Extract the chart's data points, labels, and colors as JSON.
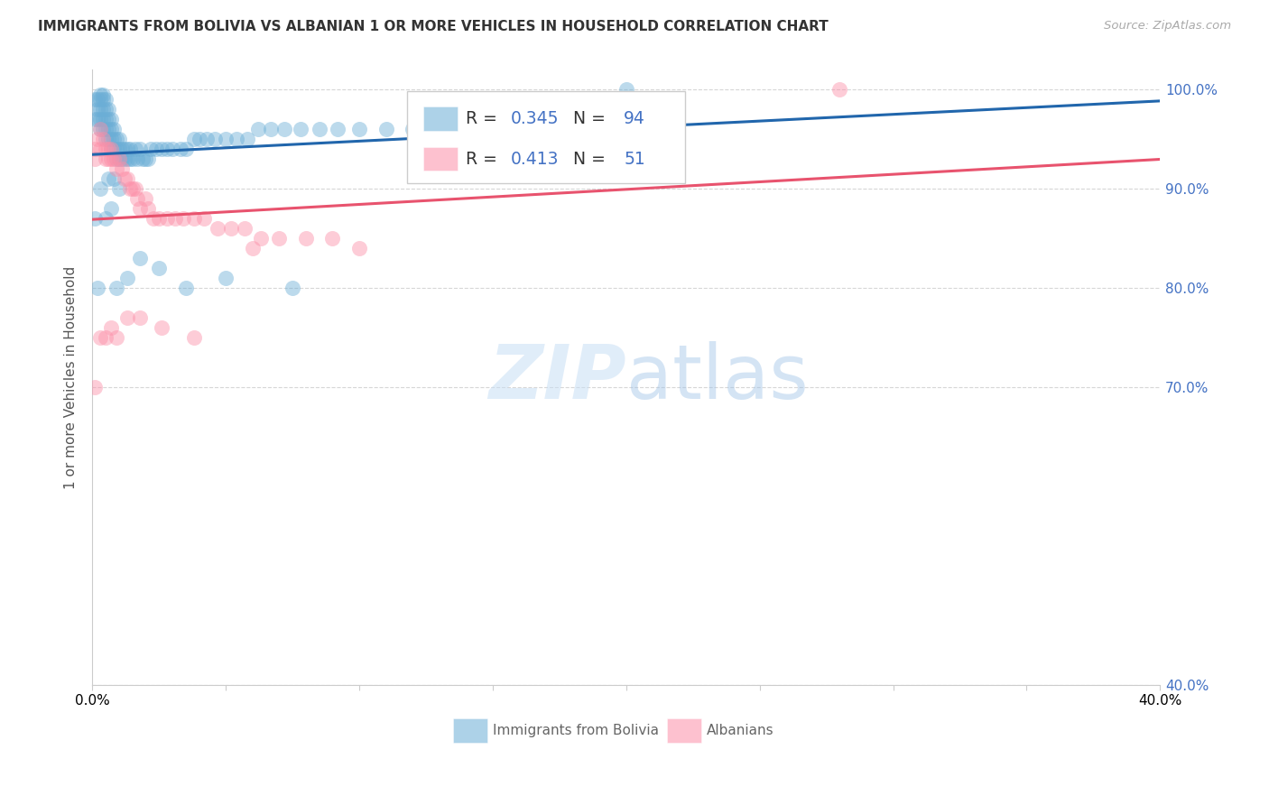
{
  "title": "IMMIGRANTS FROM BOLIVIA VS ALBANIAN 1 OR MORE VEHICLES IN HOUSEHOLD CORRELATION CHART",
  "source": "Source: ZipAtlas.com",
  "ylabel": "1 or more Vehicles in Household",
  "bolivia_color": "#6baed6",
  "albanian_color": "#fc8fa8",
  "bolivia_line_color": "#2166ac",
  "albanian_line_color": "#e8536e",
  "bolivia_R": 0.345,
  "bolivia_N": 94,
  "albanian_R": 0.413,
  "albanian_N": 51,
  "xmin": 0.0,
  "xmax": 0.4,
  "ymin": 0.4,
  "ymax": 1.02,
  "bolivia_x": [
    0.001,
    0.001,
    0.002,
    0.002,
    0.002,
    0.003,
    0.003,
    0.003,
    0.003,
    0.003,
    0.004,
    0.004,
    0.004,
    0.004,
    0.004,
    0.005,
    0.005,
    0.005,
    0.005,
    0.005,
    0.006,
    0.006,
    0.006,
    0.006,
    0.007,
    0.007,
    0.007,
    0.007,
    0.008,
    0.008,
    0.008,
    0.009,
    0.009,
    0.009,
    0.01,
    0.01,
    0.01,
    0.011,
    0.011,
    0.012,
    0.012,
    0.013,
    0.013,
    0.014,
    0.014,
    0.015,
    0.016,
    0.017,
    0.018,
    0.019,
    0.02,
    0.021,
    0.022,
    0.024,
    0.026,
    0.028,
    0.03,
    0.033,
    0.035,
    0.038,
    0.04,
    0.043,
    0.046,
    0.05,
    0.054,
    0.058,
    0.062,
    0.067,
    0.072,
    0.078,
    0.085,
    0.092,
    0.1,
    0.11,
    0.12,
    0.13,
    0.14,
    0.15,
    0.002,
    0.005,
    0.007,
    0.009,
    0.013,
    0.018,
    0.025,
    0.035,
    0.05,
    0.075,
    0.003,
    0.006,
    0.008,
    0.01,
    0.001,
    0.2
  ],
  "bolivia_y": [
    0.97,
    0.99,
    0.97,
    0.98,
    0.99,
    0.96,
    0.97,
    0.98,
    0.99,
    0.995,
    0.96,
    0.97,
    0.98,
    0.99,
    0.995,
    0.95,
    0.96,
    0.97,
    0.98,
    0.99,
    0.95,
    0.96,
    0.97,
    0.98,
    0.94,
    0.95,
    0.96,
    0.97,
    0.94,
    0.95,
    0.96,
    0.93,
    0.94,
    0.95,
    0.93,
    0.94,
    0.95,
    0.93,
    0.94,
    0.93,
    0.94,
    0.93,
    0.94,
    0.93,
    0.94,
    0.93,
    0.94,
    0.93,
    0.94,
    0.93,
    0.93,
    0.93,
    0.94,
    0.94,
    0.94,
    0.94,
    0.94,
    0.94,
    0.94,
    0.95,
    0.95,
    0.95,
    0.95,
    0.95,
    0.95,
    0.95,
    0.96,
    0.96,
    0.96,
    0.96,
    0.96,
    0.96,
    0.96,
    0.96,
    0.96,
    0.97,
    0.97,
    0.97,
    0.8,
    0.87,
    0.88,
    0.8,
    0.81,
    0.83,
    0.82,
    0.8,
    0.81,
    0.8,
    0.9,
    0.91,
    0.91,
    0.9,
    0.87,
    1.0
  ],
  "albanian_x": [
    0.001,
    0.001,
    0.002,
    0.003,
    0.003,
    0.004,
    0.005,
    0.005,
    0.006,
    0.006,
    0.007,
    0.007,
    0.008,
    0.009,
    0.01,
    0.011,
    0.012,
    0.013,
    0.014,
    0.015,
    0.016,
    0.017,
    0.018,
    0.02,
    0.021,
    0.023,
    0.025,
    0.028,
    0.031,
    0.034,
    0.038,
    0.042,
    0.047,
    0.052,
    0.057,
    0.063,
    0.07,
    0.08,
    0.09,
    0.1,
    0.001,
    0.003,
    0.005,
    0.007,
    0.009,
    0.013,
    0.018,
    0.026,
    0.038,
    0.06,
    0.28
  ],
  "albanian_y": [
    0.93,
    0.94,
    0.95,
    0.94,
    0.96,
    0.95,
    0.93,
    0.94,
    0.93,
    0.94,
    0.93,
    0.94,
    0.93,
    0.92,
    0.93,
    0.92,
    0.91,
    0.91,
    0.9,
    0.9,
    0.9,
    0.89,
    0.88,
    0.89,
    0.88,
    0.87,
    0.87,
    0.87,
    0.87,
    0.87,
    0.87,
    0.87,
    0.86,
    0.86,
    0.86,
    0.85,
    0.85,
    0.85,
    0.85,
    0.84,
    0.7,
    0.75,
    0.75,
    0.76,
    0.75,
    0.77,
    0.77,
    0.76,
    0.75,
    0.84,
    1.0
  ],
  "watermark_zip": "ZIP",
  "watermark_atlas": "atlas",
  "grid_color": "#cccccc",
  "yticks": [
    0.4,
    0.7,
    0.8,
    0.9,
    1.0
  ],
  "ytick_labels_right": [
    "40.0%",
    "70.0%",
    "80.0%",
    "90.0%",
    "100.0%"
  ],
  "xticks": [
    0.0,
    0.05,
    0.1,
    0.15,
    0.2,
    0.25,
    0.3,
    0.35,
    0.4
  ],
  "xtick_labels": [
    "0.0%",
    "",
    "",
    "",
    "",
    "",
    "",
    "",
    "40.0%"
  ]
}
